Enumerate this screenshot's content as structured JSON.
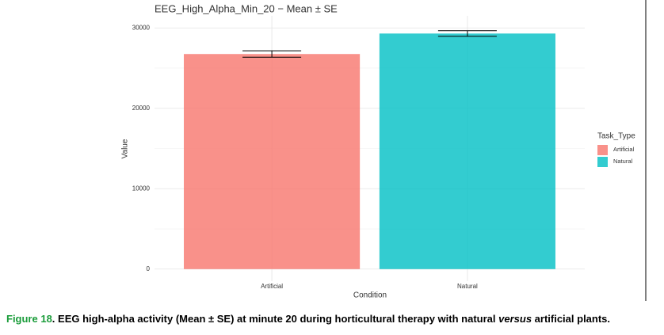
{
  "chart_data": {
    "type": "bar",
    "title": "EEG_High_Alpha_Min_20 − Mean ± SE",
    "x_label": "Condition",
    "y_label": "Value",
    "categories": [
      "Artificial",
      "Natural"
    ],
    "values": [
      26750,
      29300
    ],
    "errors": [
      400,
      350
    ],
    "colors": [
      "#F8766D",
      "#00BFC4"
    ],
    "opacity": 0.8,
    "ylim": [
      -1500,
      31500
    ],
    "yticks": [
      0,
      10000,
      20000,
      30000
    ],
    "minor_yticks": [
      5000,
      15000,
      25000
    ],
    "grid": true,
    "legend": {
      "title": "Task_Type",
      "position": "right"
    }
  },
  "caption": {
    "label": "Figure 18",
    "text_1": ". EEG high-alpha activity (Mean ± SE) at minute 20 during horticultural therapy with natural ",
    "emphasis": "versus",
    "text_2": " artificial plants."
  }
}
